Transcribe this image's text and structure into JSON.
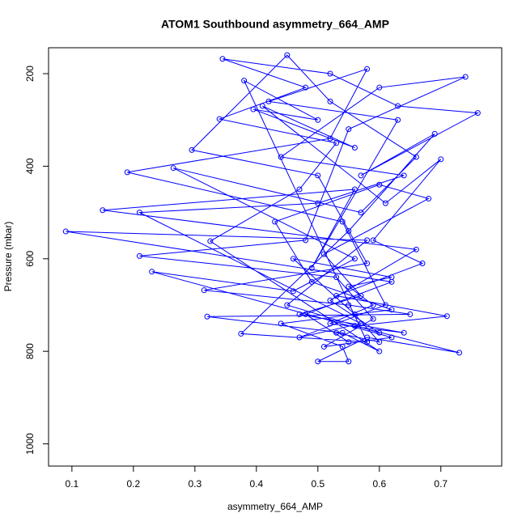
{
  "chart_data": {
    "type": "line",
    "title": "ATOM1 Southbound asymmetry_664_AMP",
    "x_label": "asymmetry_664_AMP",
    "y_label": "Pressure (mbar)",
    "color": "#0000ff",
    "markers": true,
    "xlim": [
      0.062,
      0.799
    ],
    "ylim": [
      1048,
      144
    ],
    "xticks": [
      0.1,
      0.2,
      0.3,
      0.4,
      0.5,
      0.6,
      0.7
    ],
    "yticks": [
      200,
      400,
      600,
      800,
      1000
    ],
    "x": [
      0.55,
      0.48,
      0.62,
      0.09,
      0.58,
      0.45,
      0.6,
      0.52,
      0.66,
      0.15,
      0.56,
      0.49,
      0.63,
      0.42,
      0.58,
      0.52,
      0.19,
      0.54,
      0.61,
      0.47,
      0.57,
      0.21,
      0.5,
      0.64,
      0.44,
      0.6,
      0.74,
      0.55,
      0.48,
      0.21,
      0.53,
      0.59,
      0.51,
      0.62,
      0.23,
      0.46,
      0.56,
      0.265,
      0.57,
      0.66,
      0.52,
      0.45,
      0.295,
      0.5,
      0.58,
      0.315,
      0.55,
      0.65,
      0.32,
      0.54,
      0.6,
      0.325,
      0.47,
      0.53,
      0.34,
      0.48,
      0.345,
      0.52,
      0.63,
      0.76,
      0.57,
      0.69,
      0.55,
      0.375,
      0.58,
      0.38,
      0.5,
      0.395,
      0.56,
      0.41,
      0.61,
      0.7,
      0.59,
      0.67,
      0.53,
      0.71,
      0.56,
      0.73,
      0.58,
      0.5,
      0.55,
      0.54,
      0.44,
      0.62,
      0.49,
      0.43,
      0.6,
      0.68,
      0.51,
      0.57,
      0.47,
      0.64,
      0.52,
      0.59,
      0.55,
      0.62,
      0.46,
      0.56,
      0.6,
      0.53
    ],
    "y": [
      780,
      720,
      650,
      541,
      560,
      700,
      760,
      690,
      580,
      495,
      450,
      620,
      300,
      260,
      190,
      340,
      413,
      520,
      700,
      770,
      740,
      500,
      480,
      420,
      380,
      230,
      207,
      320,
      560,
      594,
      640,
      730,
      790,
      770,
      628,
      670,
      600,
      404,
      500,
      380,
      260,
      160,
      365,
      420,
      610,
      668,
      700,
      720,
      725,
      760,
      800,
      562,
      450,
      350,
      298,
      230,
      168,
      200,
      270,
      285,
      420,
      330,
      540,
      762,
      780,
      215,
      300,
      277,
      360,
      270,
      480,
      385,
      560,
      610,
      680,
      724,
      745,
      803,
      770,
      822,
      822,
      790,
      740,
      710,
      650,
      520,
      440,
      470,
      590,
      680,
      720,
      760,
      740,
      700,
      660,
      640,
      600,
      720,
      780,
      760
    ]
  }
}
